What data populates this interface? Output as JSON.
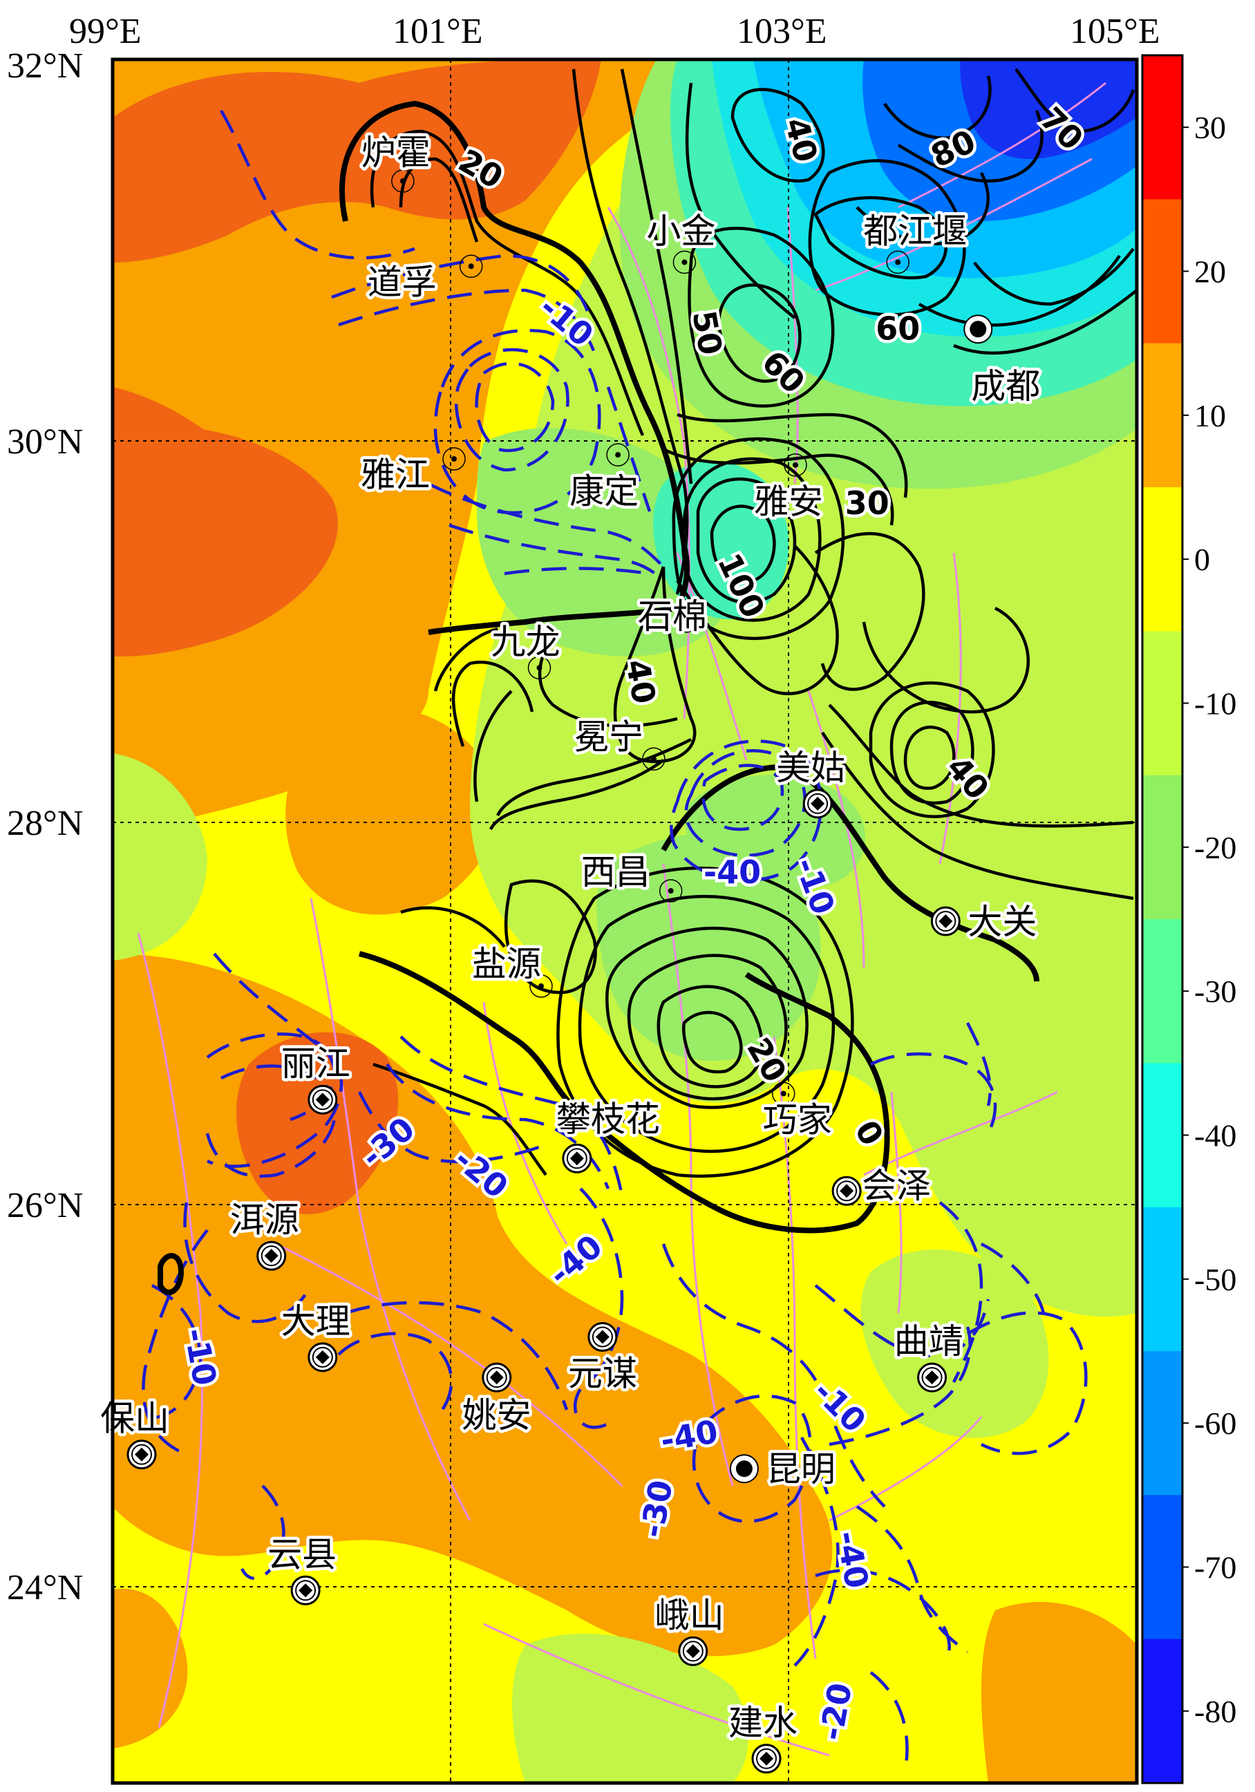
{
  "axes": {
    "lon_labels": [
      "99°E",
      "101°E",
      "103°E",
      "105°E"
    ],
    "lat_labels": [
      "32°N",
      "30°N",
      "28°N",
      "26°N",
      "24°N"
    ]
  },
  "colorbar": {
    "labels": [
      "30",
      "20",
      "10",
      "0",
      "-10",
      "-20",
      "-30",
      "-40",
      "-50",
      "-60",
      "-70",
      "-80"
    ],
    "colors": [
      "#ff0000",
      "#ff5a00",
      "#ffaa00",
      "#ffff00",
      "#c6ff40",
      "#8ff060",
      "#55ff99",
      "#18ffe6",
      "#00ccff",
      "#0098ff",
      "#0058ff",
      "#1414ff"
    ]
  },
  "map": {
    "fill_colors": {
      "orange": "#f9a200",
      "dark_orange": "#f06414",
      "yellow": "#ffff00",
      "light_green": "#c2f548",
      "green": "#98ec66",
      "aqua": "#44f0b4",
      "cyan": "#16e6e6",
      "sky": "#00c0ff",
      "blue": "#0070ff",
      "deep_blue": "#1430f0"
    },
    "contour_colors": {
      "positive": "#000000",
      "negative": "#1c1cd0",
      "fault": "#e98be0"
    },
    "cities": [
      {
        "name": "炉霍",
        "lon": 100.7,
        "lat": 31.4,
        "symbol": "small-dot"
      },
      {
        "name": "道孚",
        "lon": 101.1,
        "lat": 30.98,
        "symbol": "small-dot"
      },
      {
        "name": "小金",
        "lon": 102.35,
        "lat": 31.0,
        "symbol": "small-dot"
      },
      {
        "name": "都江堰",
        "lon": 103.6,
        "lat": 31.0,
        "symbol": "small-dot"
      },
      {
        "name": "成都",
        "lon": 104.07,
        "lat": 30.67,
        "symbol": "big-dot"
      },
      {
        "name": "雅江",
        "lon": 101.0,
        "lat": 30.03,
        "symbol": "small-dot"
      },
      {
        "name": "康定",
        "lon": 101.96,
        "lat": 30.05,
        "symbol": "small-dot"
      },
      {
        "name": "雅安",
        "lon": 103.0,
        "lat": 30.0,
        "symbol": "small-dot"
      },
      {
        "name": "石棉",
        "lon": 102.36,
        "lat": 29.23,
        "symbol": "small-dot"
      },
      {
        "name": "九龙",
        "lon": 101.5,
        "lat": 29.0,
        "symbol": "small-dot"
      },
      {
        "name": "冕宁",
        "lon": 102.17,
        "lat": 28.55,
        "symbol": "small-dot"
      },
      {
        "name": "美姑",
        "lon": 103.13,
        "lat": 28.33,
        "symbol": "diamond"
      },
      {
        "name": "西昌",
        "lon": 102.27,
        "lat": 27.9,
        "symbol": "small-dot"
      },
      {
        "name": "大关",
        "lon": 103.88,
        "lat": 27.75,
        "symbol": "diamond"
      },
      {
        "name": "盐源",
        "lon": 101.51,
        "lat": 27.43,
        "symbol": "small-dot"
      },
      {
        "name": "丽江",
        "lon": 100.23,
        "lat": 26.87,
        "symbol": "diamond"
      },
      {
        "name": "攀枝花",
        "lon": 101.72,
        "lat": 26.58,
        "symbol": "diamond"
      },
      {
        "name": "巧家",
        "lon": 102.93,
        "lat": 26.9,
        "symbol": "small-dot"
      },
      {
        "name": "会泽",
        "lon": 103.3,
        "lat": 26.42,
        "symbol": "diamond"
      },
      {
        "name": "洱源",
        "lon": 99.93,
        "lat": 26.1,
        "symbol": "diamond"
      },
      {
        "name": "大理",
        "lon": 100.23,
        "lat": 25.6,
        "symbol": "diamond"
      },
      {
        "name": "元谋",
        "lon": 101.87,
        "lat": 25.7,
        "symbol": "diamond"
      },
      {
        "name": "姚安",
        "lon": 101.25,
        "lat": 25.5,
        "symbol": "diamond"
      },
      {
        "name": "曲靖",
        "lon": 103.8,
        "lat": 25.5,
        "symbol": "diamond"
      },
      {
        "name": "保山",
        "lon": 99.17,
        "lat": 25.12,
        "symbol": "diamond"
      },
      {
        "name": "昆明",
        "lon": 102.7,
        "lat": 25.05,
        "symbol": "big-dot"
      },
      {
        "name": "云县",
        "lon": 100.13,
        "lat": 24.45,
        "symbol": "diamond"
      },
      {
        "name": "峨山",
        "lon": 102.4,
        "lat": 24.15,
        "symbol": "diamond"
      },
      {
        "name": "建水",
        "lon": 102.83,
        "lat": 23.62,
        "symbol": "diamond"
      }
    ],
    "contour_labels": [
      {
        "text": "20",
        "sign": "pos",
        "lon": 101.15,
        "lat": 31.45,
        "rot": 30
      },
      {
        "text": "40",
        "sign": "pos",
        "lon": 103.02,
        "lat": 31.6,
        "rot": 75
      },
      {
        "text": "80",
        "sign": "pos",
        "lon": 103.93,
        "lat": 31.55,
        "rot": -25
      },
      {
        "text": "70",
        "sign": "pos",
        "lon": 104.55,
        "lat": 31.65,
        "rot": 45
      },
      {
        "text": "-10",
        "sign": "neg",
        "lon": 101.65,
        "lat": 30.7,
        "rot": 40
      },
      {
        "text": "50",
        "sign": "pos",
        "lon": 102.47,
        "lat": 30.65,
        "rot": 80
      },
      {
        "text": "60",
        "sign": "pos",
        "lon": 102.92,
        "lat": 30.45,
        "rot": 45
      },
      {
        "text": "60",
        "sign": "pos",
        "lon": 103.6,
        "lat": 30.66,
        "rot": 0
      },
      {
        "text": "30",
        "sign": "pos",
        "lon": 103.42,
        "lat": 29.8,
        "rot": 0
      },
      {
        "text": "100",
        "sign": "pos",
        "lon": 102.67,
        "lat": 29.4,
        "rot": 65
      },
      {
        "text": "40",
        "sign": "pos",
        "lon": 102.08,
        "lat": 28.93,
        "rot": 80
      },
      {
        "text": "40",
        "sign": "pos",
        "lon": 104.0,
        "lat": 28.45,
        "rot": 50
      },
      {
        "text": "-40",
        "sign": "neg",
        "lon": 102.63,
        "lat": 27.98,
        "rot": 0
      },
      {
        "text": "-10",
        "sign": "neg",
        "lon": 103.1,
        "lat": 27.92,
        "rot": 70
      },
      {
        "text": "20",
        "sign": "pos",
        "lon": 102.82,
        "lat": 27.06,
        "rot": 60
      },
      {
        "text": "0",
        "sign": "pos",
        "lon": 103.42,
        "lat": 26.7,
        "rot": 60
      },
      {
        "text": "-30",
        "sign": "neg",
        "lon": 100.62,
        "lat": 26.65,
        "rot": -40
      },
      {
        "text": "-20",
        "sign": "neg",
        "lon": 101.15,
        "lat": 26.5,
        "rot": 40
      },
      {
        "text": "-40",
        "sign": "neg",
        "lon": 101.72,
        "lat": 26.07,
        "rot": -40
      },
      {
        "text": "-10",
        "sign": "neg",
        "lon": 99.5,
        "lat": 25.6,
        "rot": 80
      },
      {
        "text": "-10",
        "sign": "neg",
        "lon": 103.25,
        "lat": 25.35,
        "rot": 45
      },
      {
        "text": "-40",
        "sign": "neg",
        "lon": 102.38,
        "lat": 25.2,
        "rot": -10
      },
      {
        "text": "-30",
        "sign": "neg",
        "lon": 102.2,
        "lat": 24.85,
        "rot": -80
      },
      {
        "text": "-40",
        "sign": "neg",
        "lon": 103.32,
        "lat": 24.6,
        "rot": 80
      },
      {
        "text": "-20",
        "sign": "neg",
        "lon": 103.25,
        "lat": 23.85,
        "rot": -80
      }
    ]
  }
}
